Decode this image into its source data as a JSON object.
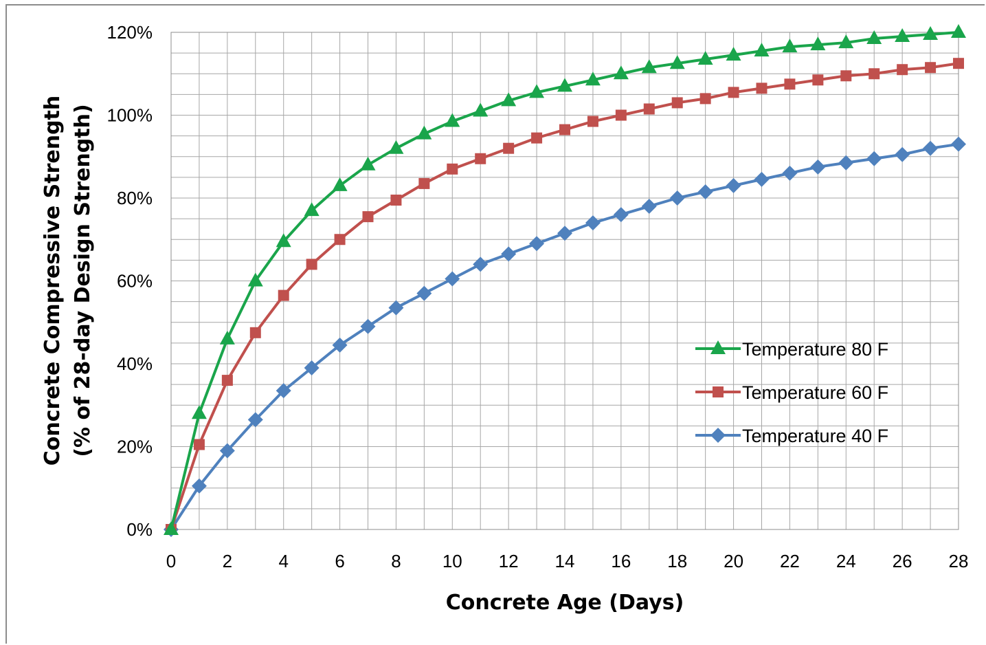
{
  "chart_data": {
    "type": "line",
    "title": "",
    "xlabel": "Concrete Age (Days)",
    "ylabel_lines": [
      "Concrete Compressive Strength",
      "(% of 28-day Design Strength)"
    ],
    "xlim": [
      0,
      28
    ],
    "ylim": [
      0,
      120
    ],
    "x_ticks": [
      "0",
      "2",
      "4",
      "6",
      "8",
      "10",
      "12",
      "14",
      "16",
      "18",
      "20",
      "22",
      "24",
      "26",
      "28"
    ],
    "y_ticks": [
      "0%",
      "20%",
      "40%",
      "60%",
      "80%",
      "100%",
      "120%"
    ],
    "grid": true,
    "legend_position": "right",
    "x": [
      0,
      1,
      2,
      3,
      4,
      5,
      6,
      7,
      8,
      9,
      10,
      11,
      12,
      13,
      14,
      15,
      16,
      17,
      18,
      19,
      20,
      21,
      22,
      23,
      24,
      25,
      26,
      27,
      28
    ],
    "series": [
      {
        "name": "Temperature 80 F",
        "color": "#1aa54b",
        "marker": "triangle",
        "values": [
          0,
          28,
          46,
          60,
          69.5,
          77,
          83,
          88,
          92,
          95.5,
          98.5,
          101,
          103.5,
          105.5,
          107,
          108.5,
          110,
          111.5,
          112.5,
          113.5,
          114.5,
          115.5,
          116.5,
          117,
          117.5,
          118.5,
          119,
          119.5,
          120
        ]
      },
      {
        "name": "Temperature 60 F",
        "color": "#c0504d",
        "marker": "square",
        "values": [
          0,
          20.5,
          36,
          47.5,
          56.5,
          64,
          70,
          75.5,
          79.5,
          83.5,
          87,
          89.5,
          92,
          94.5,
          96.5,
          98.5,
          100,
          101.5,
          103,
          104,
          105.5,
          106.5,
          107.5,
          108.5,
          109.5,
          110,
          111,
          111.5,
          112.5
        ]
      },
      {
        "name": "Temperature 40 F",
        "color": "#4f81bd",
        "marker": "diamond",
        "values": [
          0,
          10.5,
          19,
          26.5,
          33.5,
          39,
          44.5,
          49,
          53.5,
          57,
          60.5,
          64,
          66.5,
          69,
          71.5,
          74,
          76,
          78,
          80,
          81.5,
          83,
          84.5,
          86,
          87.5,
          88.5,
          89.5,
          90.5,
          92,
          93
        ]
      }
    ]
  }
}
